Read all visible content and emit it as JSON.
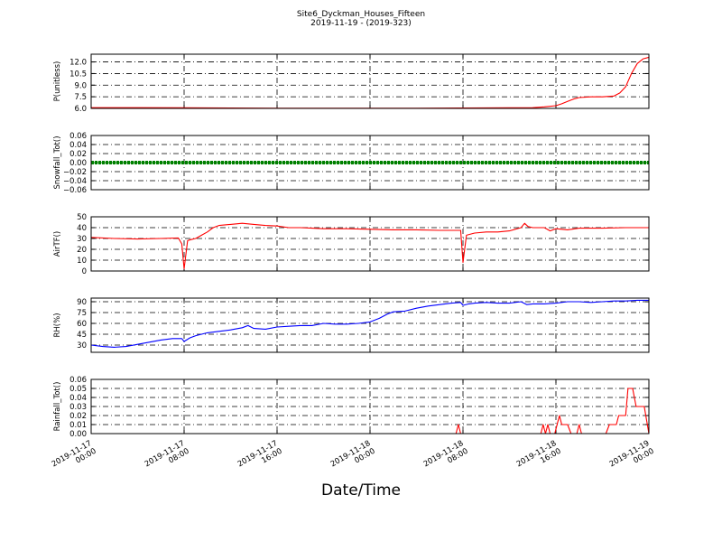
{
  "figure": {
    "title": "Site6_Dyckman_Houses_Fifteen",
    "subtitle": "2019-11-19 - (2019-323)",
    "xlabel": "Date/Time",
    "x_tick_labels": [
      [
        "2019-11-17",
        "00:00"
      ],
      [
        "2019-11-17",
        "08:00"
      ],
      [
        "2019-11-17",
        "16:00"
      ],
      [
        "2019-11-18",
        "00:00"
      ],
      [
        "2019-11-18",
        "08:00"
      ],
      [
        "2019-11-18",
        "16:00"
      ],
      [
        "2019-11-19",
        "00:00"
      ]
    ]
  },
  "chart_data": [
    {
      "type": "line",
      "ylabel": "P(unitless)",
      "ylim": [
        6.0,
        13.0
      ],
      "yticks": [
        "6.0",
        "7.5",
        "9.0",
        "10.5",
        "12.0"
      ],
      "ytick_values": [
        6.0,
        7.5,
        9.0,
        10.5,
        12.0
      ],
      "grid": true,
      "xlim_hours": [
        0,
        48
      ],
      "series": [
        {
          "color": "#ff0000",
          "points": [
            [
              0,
              6.1
            ],
            [
              4,
              6.1
            ],
            [
              8,
              6.08
            ],
            [
              12,
              6.05
            ],
            [
              16,
              6.03
            ],
            [
              20,
              6.02
            ],
            [
              24,
              6.02
            ],
            [
              28,
              6.03
            ],
            [
              32,
              6.05
            ],
            [
              36,
              6.08
            ],
            [
              38,
              6.1
            ],
            [
              39,
              6.2
            ],
            [
              40,
              6.35
            ],
            [
              40.5,
              6.6
            ],
            [
              41,
              6.9
            ],
            [
              41.5,
              7.2
            ],
            [
              42,
              7.4
            ],
            [
              43,
              7.5
            ],
            [
              44,
              7.5
            ],
            [
              45,
              7.6
            ],
            [
              45.5,
              8.0
            ],
            [
              46,
              8.8
            ],
            [
              46.5,
              10.5
            ],
            [
              47,
              11.8
            ],
            [
              47.5,
              12.4
            ],
            [
              48,
              12.6
            ]
          ]
        }
      ]
    },
    {
      "type": "line",
      "ylabel": "Snowfall_Tot()",
      "ylim": [
        -0.06,
        0.06
      ],
      "yticks": [
        "−0.06",
        "−0.04",
        "−0.02",
        "0.00",
        "0.02",
        "0.04",
        "0.06"
      ],
      "ytick_values": [
        -0.06,
        -0.04,
        -0.02,
        0.0,
        0.02,
        0.04,
        0.06
      ],
      "grid": true,
      "xlim_hours": [
        0,
        48
      ],
      "series": [
        {
          "color": "#008000",
          "points": [
            [
              0,
              0.0
            ],
            [
              48,
              0.0
            ]
          ]
        }
      ]
    },
    {
      "type": "line",
      "ylabel": "AirTF()",
      "ylim": [
        0,
        50
      ],
      "yticks": [
        "0",
        "10",
        "20",
        "30",
        "40",
        "50"
      ],
      "ytick_values": [
        0,
        10,
        20,
        30,
        40,
        50
      ],
      "grid": true,
      "xlim_hours": [
        0,
        48
      ],
      "series": [
        {
          "color": "#ff0000",
          "points": [
            [
              0,
              31
            ],
            [
              2,
              30
            ],
            [
              4,
              29.5
            ],
            [
              6,
              30
            ],
            [
              7.5,
              30.5
            ],
            [
              7.8,
              25
            ],
            [
              8,
              2
            ],
            [
              8.3,
              28
            ],
            [
              8.6,
              29
            ],
            [
              9,
              30
            ],
            [
              9.5,
              33
            ],
            [
              10,
              36
            ],
            [
              10.5,
              40
            ],
            [
              11,
              42
            ],
            [
              12,
              43
            ],
            [
              13,
              44
            ],
            [
              14,
              43
            ],
            [
              15,
              42
            ],
            [
              16,
              41.5
            ],
            [
              17,
              40
            ],
            [
              18,
              40
            ],
            [
              19,
              39.5
            ],
            [
              20,
              39
            ],
            [
              22,
              39
            ],
            [
              24,
              38.5
            ],
            [
              26,
              38
            ],
            [
              28,
              38
            ],
            [
              30,
              37.5
            ],
            [
              31.8,
              37.5
            ],
            [
              32,
              8
            ],
            [
              32.3,
              33
            ],
            [
              33,
              35
            ],
            [
              34,
              36
            ],
            [
              35,
              36
            ],
            [
              36,
              37
            ],
            [
              37,
              40
            ],
            [
              37.3,
              44
            ],
            [
              37.6,
              41
            ],
            [
              38,
              40
            ],
            [
              39,
              40
            ],
            [
              39.5,
              37
            ],
            [
              40,
              39
            ],
            [
              41,
              38
            ],
            [
              42,
              39.5
            ],
            [
              44,
              39.5
            ],
            [
              46,
              40
            ],
            [
              48,
              40
            ]
          ]
        }
      ]
    },
    {
      "type": "line",
      "ylabel": "RH(%)",
      "ylim": [
        20,
        95
      ],
      "yticks": [
        "30",
        "45",
        "60",
        "75",
        "90"
      ],
      "ytick_values": [
        30,
        45,
        60,
        75,
        90
      ],
      "grid": true,
      "xlim_hours": [
        0,
        48
      ],
      "series": [
        {
          "color": "#0000ff",
          "points": [
            [
              0,
              30
            ],
            [
              1,
              28
            ],
            [
              2,
              27
            ],
            [
              3,
              28
            ],
            [
              4,
              31
            ],
            [
              5,
              34
            ],
            [
              6,
              37
            ],
            [
              7,
              39
            ],
            [
              7.8,
              39
            ],
            [
              8,
              35
            ],
            [
              8.5,
              40
            ],
            [
              9,
              43
            ],
            [
              10,
              47
            ],
            [
              11,
              49
            ],
            [
              12,
              51
            ],
            [
              13,
              54
            ],
            [
              13.5,
              57
            ],
            [
              14,
              53
            ],
            [
              15,
              52
            ],
            [
              16,
              55
            ],
            [
              17,
              56
            ],
            [
              18,
              57
            ],
            [
              19,
              57
            ],
            [
              20,
              60
            ],
            [
              21,
              59
            ],
            [
              22,
              59
            ],
            [
              23,
              60
            ],
            [
              24,
              62
            ],
            [
              24.8,
              67
            ],
            [
              25.5,
              73
            ],
            [
              26,
              76
            ],
            [
              27,
              77
            ],
            [
              28,
              81
            ],
            [
              29,
              84
            ],
            [
              30,
              86
            ],
            [
              31,
              88
            ],
            [
              31.8,
              89
            ],
            [
              32,
              85
            ],
            [
              32.5,
              87
            ],
            [
              33,
              88
            ],
            [
              34,
              89
            ],
            [
              35,
              88
            ],
            [
              36,
              88
            ],
            [
              37,
              90
            ],
            [
              37.5,
              86
            ],
            [
              38,
              87
            ],
            [
              39,
              87
            ],
            [
              40,
              88
            ],
            [
              41,
              90
            ],
            [
              42,
              90
            ],
            [
              43,
              89
            ],
            [
              44,
              90
            ],
            [
              45,
              91
            ],
            [
              46,
              91
            ],
            [
              47,
              92
            ],
            [
              48,
              92
            ]
          ]
        }
      ]
    },
    {
      "type": "line",
      "ylabel": "Rainfall_Tot()",
      "ylim": [
        0.0,
        0.06
      ],
      "yticks": [
        "0.00",
        "0.01",
        "0.02",
        "0.03",
        "0.04",
        "0.05",
        "0.06"
      ],
      "ytick_values": [
        0.0,
        0.01,
        0.02,
        0.03,
        0.04,
        0.05,
        0.06
      ],
      "grid": true,
      "xlim_hours": [
        0,
        48
      ],
      "series": [
        {
          "color": "#ff0000",
          "points": [
            [
              0,
              0
            ],
            [
              31.4,
              0
            ],
            [
              31.6,
              0.01
            ],
            [
              31.8,
              0
            ],
            [
              38.7,
              0
            ],
            [
              38.9,
              0.01
            ],
            [
              39.1,
              0
            ],
            [
              39.3,
              0.01
            ],
            [
              39.5,
              0
            ],
            [
              39.9,
              0
            ],
            [
              40.3,
              0.02
            ],
            [
              40.5,
              0.01
            ],
            [
              41,
              0.01
            ],
            [
              41.3,
              0
            ],
            [
              41.8,
              0
            ],
            [
              42,
              0.01
            ],
            [
              42.2,
              0
            ],
            [
              44.3,
              0
            ],
            [
              44.6,
              0.01
            ],
            [
              45.2,
              0.01
            ],
            [
              45.4,
              0.02
            ],
            [
              46,
              0.02
            ],
            [
              46.2,
              0.05
            ],
            [
              46.6,
              0.05
            ],
            [
              46.9,
              0.03
            ],
            [
              47.6,
              0.03
            ],
            [
              48,
              0
            ]
          ]
        }
      ]
    }
  ]
}
